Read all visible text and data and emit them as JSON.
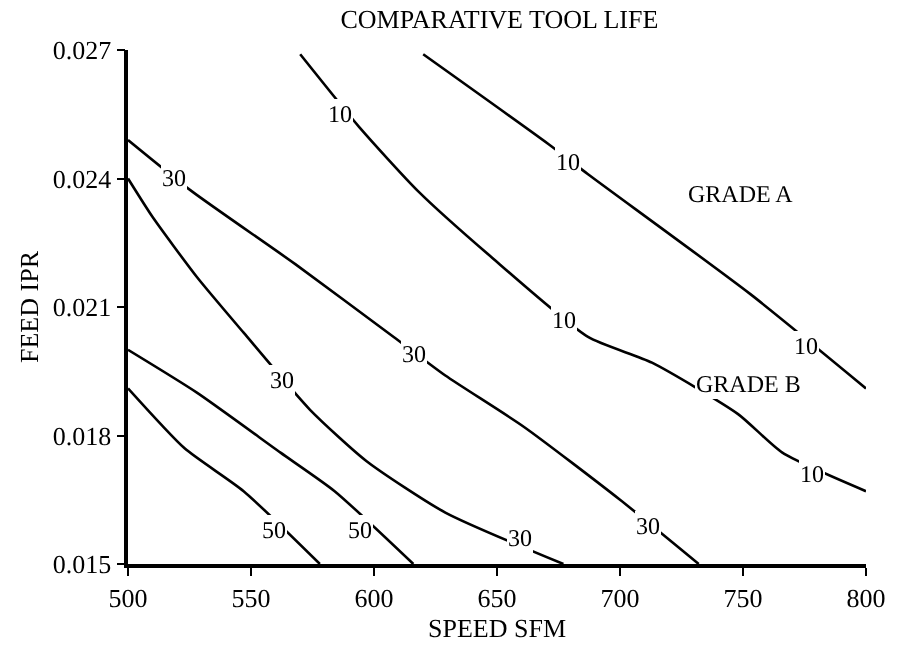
{
  "chart_data": {
    "type": "line",
    "title": "COMPARATIVE TOOL LIFE",
    "xlabel": "SPEED SFM",
    "ylabel": "FEED IPR",
    "xlim": [
      500,
      800
    ],
    "xticks": [
      500,
      550,
      600,
      650,
      700,
      750,
      800
    ],
    "ylim": [
      0.015,
      0.027
    ],
    "yticks": [
      0.015,
      0.018,
      0.021,
      0.024,
      0.027
    ],
    "marker": "none",
    "line_style": "solid",
    "series": [
      {
        "color": "#000000",
        "x": [
          620,
          671,
          687,
          753,
          800
        ],
        "values": [
          0.0269,
          0.0248,
          0.0241,
          0.0213,
          0.0191
        ]
      },
      {
        "color": "#000000",
        "x": [
          570,
          594,
          618,
          647,
          687,
          713,
          748,
          766,
          800
        ],
        "values": [
          0.0269,
          0.0252,
          0.0237,
          0.0222,
          0.0203,
          0.0197,
          0.0185,
          0.0176,
          0.0167
        ]
      },
      {
        "color": "#000000",
        "x": [
          500,
          526,
          568,
          608,
          629,
          661,
          700,
          732
        ],
        "values": [
          0.0249,
          0.0237,
          0.022,
          0.0203,
          0.0194,
          0.0182,
          0.0165,
          0.015
        ]
      },
      {
        "color": "#000000",
        "x": [
          500,
          510,
          528,
          547,
          574,
          597,
          629,
          677
        ],
        "values": [
          0.024,
          0.0231,
          0.0217,
          0.0204,
          0.0186,
          0.0174,
          0.0162,
          0.015
        ]
      },
      {
        "color": "#000000",
        "x": [
          500,
          528,
          562,
          584,
          616
        ],
        "values": [
          0.02,
          0.019,
          0.0176,
          0.0167,
          0.015
        ]
      },
      {
        "color": "#000000",
        "x": [
          500,
          523,
          547,
          578
        ],
        "values": [
          0.0191,
          0.0177,
          0.0167,
          0.015
        ]
      }
    ],
    "annotations": [
      {
        "text": "10",
        "x": 679,
        "y": 0.0244
      },
      {
        "text": "10",
        "x": 776,
        "y": 0.0201
      },
      {
        "text": "10",
        "x": 586,
        "y": 0.0255
      },
      {
        "text": "10",
        "x": 677,
        "y": 0.0207
      },
      {
        "text": "10",
        "x": 778,
        "y": 0.0171
      },
      {
        "text": "30",
        "x": 519,
        "y": 0.024
      },
      {
        "text": "30",
        "x": 616,
        "y": 0.0199
      },
      {
        "text": "30",
        "x": 711,
        "y": 0.0159
      },
      {
        "text": "30",
        "x": 563,
        "y": 0.0193
      },
      {
        "text": "30",
        "x": 659,
        "y": 0.0156
      },
      {
        "text": "50",
        "x": 594,
        "y": 0.0158
      },
      {
        "text": "50",
        "x": 559,
        "y": 0.0158
      },
      "GRADE A",
      "GRADE B"
    ]
  }
}
